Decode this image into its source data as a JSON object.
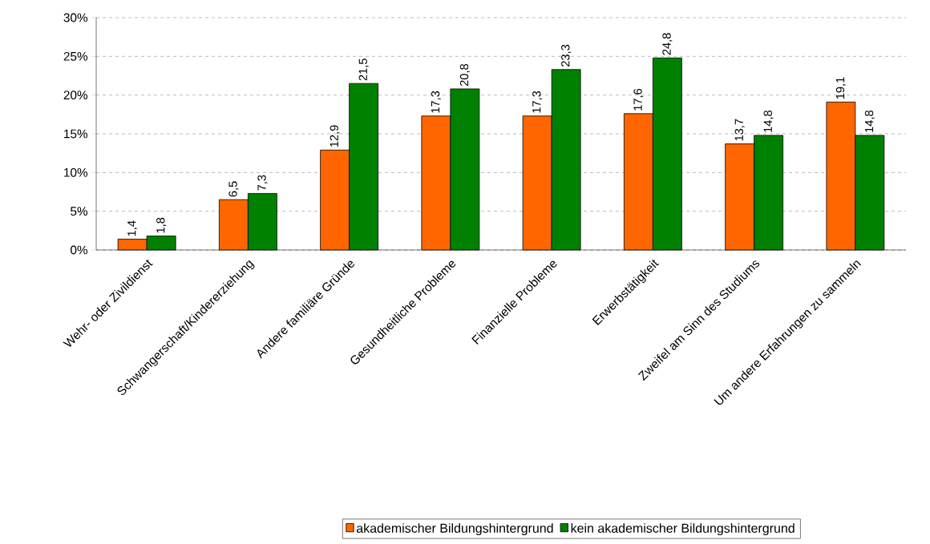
{
  "chart_data": {
    "type": "bar",
    "categories": [
      "Wehr- oder Zivildienst",
      "Schwangerschaft/Kindererziehung",
      "Andere familiäre Gründe",
      "Gesundheitliche Probleme",
      "Finanzielle Probleme",
      "Erwerbstätigkeit",
      "Zweifel am Sinn des Studiums",
      "Um andere Erfahrungen zu sammeln"
    ],
    "series": [
      {
        "name": "akademischer Bildungshintergrund",
        "color": "#ff6600",
        "values": [
          1.4,
          6.5,
          12.9,
          17.3,
          17.3,
          17.6,
          13.7,
          19.1
        ],
        "value_labels": [
          "1,4",
          "6,5",
          "12,9",
          "17,3",
          "17,3",
          "17,6",
          "13,7",
          "19,1"
        ]
      },
      {
        "name": "kein akademischer Bildungshintergrund",
        "color": "#008000",
        "values": [
          1.8,
          7.3,
          21.5,
          20.8,
          23.3,
          24.8,
          14.8,
          14.8
        ],
        "value_labels": [
          "1,8",
          "7,3",
          "21,5",
          "20,8",
          "23,3",
          "24,8",
          "14,8",
          "14,8"
        ]
      }
    ],
    "ylim": [
      0,
      30
    ],
    "yticks": [
      {
        "value": 0,
        "label": "0%"
      },
      {
        "value": 5,
        "label": "5%"
      },
      {
        "value": 10,
        "label": "10%"
      },
      {
        "value": 15,
        "label": "15%"
      },
      {
        "value": 20,
        "label": "20%"
      },
      {
        "value": 25,
        "label": "25%"
      },
      {
        "value": 30,
        "label": "30%"
      }
    ],
    "grid": "y",
    "legend": "bottom"
  }
}
